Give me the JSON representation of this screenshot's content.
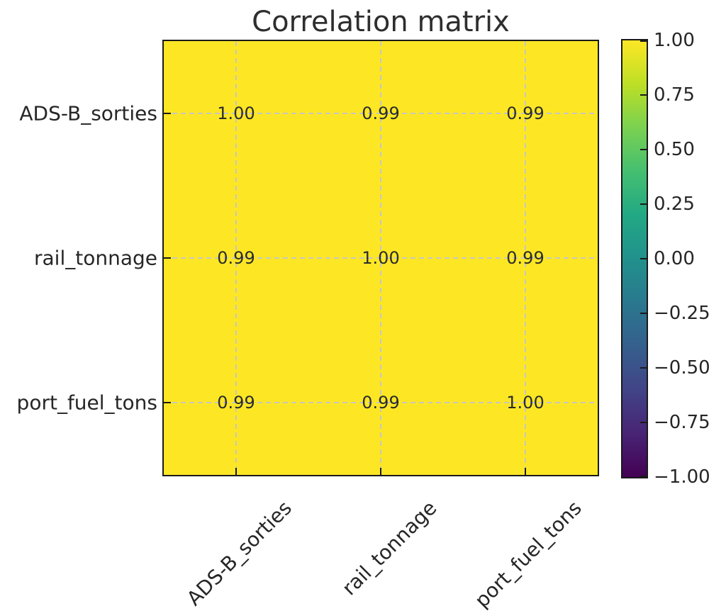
{
  "figure": {
    "title": "Correlation matrix",
    "background": "#ffffff"
  },
  "chart_data": {
    "type": "heatmap",
    "title": "Correlation matrix",
    "x_labels": [
      "ADS-B_sorties",
      "rail_tonnage",
      "port_fuel_tons"
    ],
    "y_labels": [
      "ADS-B_sorties",
      "rail_tonnage",
      "port_fuel_tons"
    ],
    "matrix": [
      [
        1.0,
        0.99,
        0.99
      ],
      [
        0.99,
        1.0,
        0.99
      ],
      [
        0.99,
        0.99,
        1.0
      ]
    ],
    "cell_text": [
      [
        "1.00",
        "0.99",
        "0.99"
      ],
      [
        "0.99",
        "1.00",
        "0.99"
      ],
      [
        "0.99",
        "0.99",
        "1.00"
      ]
    ],
    "colormap": "viridis",
    "color_range": [
      -1.0,
      1.0
    ],
    "cell_fill": "#fde725",
    "grid": {
      "style": "dashed",
      "color": "#c6c6c6"
    },
    "colorbar": {
      "position": "right",
      "ticks": [
        {
          "value": 1.0,
          "label": "1.00"
        },
        {
          "value": 0.75,
          "label": "0.75"
        },
        {
          "value": 0.5,
          "label": "0.50"
        },
        {
          "value": 0.25,
          "label": "0.25"
        },
        {
          "value": 0.0,
          "label": "0.00"
        },
        {
          "value": -0.25,
          "label": "−0.25"
        },
        {
          "value": -0.5,
          "label": "−0.50"
        },
        {
          "value": -0.75,
          "label": "−0.75"
        },
        {
          "value": -1.0,
          "label": "−1.00"
        }
      ]
    }
  },
  "colors": {
    "spine": "#1a1a1a",
    "text": "#262626",
    "grid": "#c6c6c6",
    "cell_fill": "#fde725",
    "viridis_stops": [
      "#440154",
      "#482475",
      "#414487",
      "#355f8d",
      "#2a788e",
      "#21918c",
      "#22a884",
      "#44bf70",
      "#7ad151",
      "#bddf26",
      "#fde725"
    ]
  }
}
